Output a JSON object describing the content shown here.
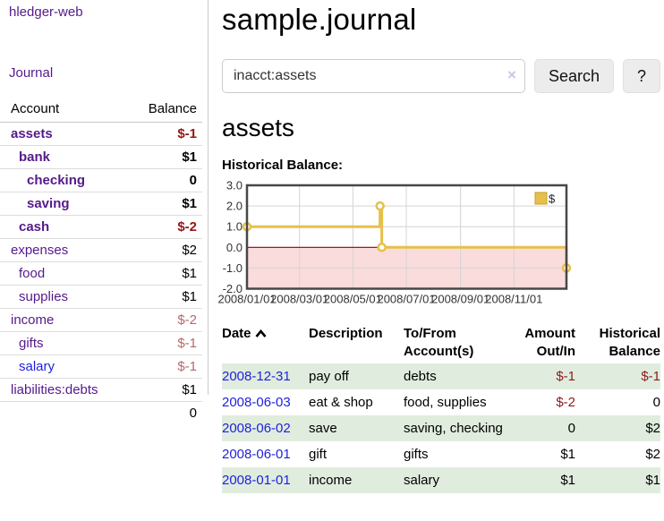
{
  "colors": {
    "link_purple": "#551a8b",
    "link_blue": "#1f1fe0",
    "negative_strong": "#941616",
    "negative_muted": "#b5696b",
    "register_negative": "#8d1a1a",
    "row_stripe_green": "#e0edde",
    "chart_gold": "#e6c04a",
    "chart_gold_dark": "#c79f2a",
    "chart_negative_fill": "#fbdcdc",
    "chart_zero_line": "#8b0000"
  },
  "sidebar": {
    "app_title": "hledger-web",
    "nav": {
      "journal_label": "Journal"
    },
    "accounts": {
      "header": {
        "account": "Account",
        "balance": "Balance"
      },
      "rows": [
        {
          "name": "assets",
          "depth": 1,
          "bold": true,
          "balance": "$-1",
          "neg": "strong"
        },
        {
          "name": "bank",
          "depth": 2,
          "bold": true,
          "balance": "$1"
        },
        {
          "name": "checking",
          "depth": 3,
          "bold": true,
          "balance": "0"
        },
        {
          "name": "saving",
          "depth": 3,
          "bold": true,
          "balance": "$1"
        },
        {
          "name": "cash",
          "depth": 2,
          "bold": true,
          "balance": "$-2",
          "neg": "strong"
        },
        {
          "name": "expenses",
          "depth": 1,
          "bold": false,
          "balance": "$2"
        },
        {
          "name": "food",
          "depth": 2,
          "bold": false,
          "balance": "$1"
        },
        {
          "name": "supplies",
          "depth": 2,
          "bold": false,
          "balance": "$1"
        },
        {
          "name": "income",
          "depth": 1,
          "bold": false,
          "balance": "$-2",
          "neg": "muted"
        },
        {
          "name": "gifts",
          "depth": 2,
          "bold": false,
          "balance": "$-1",
          "neg": "muted"
        },
        {
          "name": "salary",
          "depth": 2,
          "bold": false,
          "balance": "$-1",
          "neg": "muted",
          "link_blue": true
        },
        {
          "name": "liabilities:debts",
          "depth": 1,
          "bold": false,
          "balance": "$1"
        }
      ],
      "total": "0"
    }
  },
  "main": {
    "title": "sample.journal",
    "search": {
      "value": "inacct:assets",
      "clear_icon": "×",
      "search_label": "Search",
      "help_label": "?"
    },
    "account_heading": "assets",
    "chart_label": "Historical Balance:"
  },
  "chart_data": {
    "type": "line",
    "title": "Historical Balance:",
    "step": true,
    "series": [
      {
        "name": "$",
        "points": [
          [
            "2008-01-01",
            1
          ],
          [
            "2008-06-01",
            2
          ],
          [
            "2008-06-03",
            0
          ],
          [
            "2008-12-31",
            -1
          ]
        ]
      }
    ],
    "xlim": [
      "2008-01-01",
      "2008-12-31"
    ],
    "ylim": [
      -2,
      3
    ],
    "x_ticks": [
      "2008/01/01",
      "2008/03/01",
      "2008/05/01",
      "2008/07/01",
      "2008/09/01",
      "2008/11/01"
    ],
    "y_ticks": [
      "3.0",
      "2.0",
      "1.0",
      "0.0",
      "-1.0",
      "-2.0"
    ],
    "legend": "$",
    "legend_position": "top-right",
    "grid": true,
    "negative_region_shaded": true
  },
  "register": {
    "columns": [
      "Date",
      "Description",
      "To/From Account(s)",
      "Amount Out/In",
      "Historical Balance"
    ],
    "rows": [
      {
        "date": "2008-12-31",
        "description": "pay off",
        "accounts": "debts",
        "amount": "$-1",
        "balance": "$-1",
        "amount_neg": true,
        "balance_neg": true
      },
      {
        "date": "2008-06-03",
        "description": "eat & shop",
        "accounts": "food, supplies",
        "amount": "$-2",
        "balance": "0",
        "amount_neg": true
      },
      {
        "date": "2008-06-02",
        "description": "save",
        "accounts": "saving, checking",
        "amount": "0",
        "balance": "$2"
      },
      {
        "date": "2008-06-01",
        "description": "gift",
        "accounts": "gifts",
        "amount": "$1",
        "balance": "$2"
      },
      {
        "date": "2008-01-01",
        "description": "income",
        "accounts": "salary",
        "amount": "$1",
        "balance": "$1"
      }
    ]
  }
}
